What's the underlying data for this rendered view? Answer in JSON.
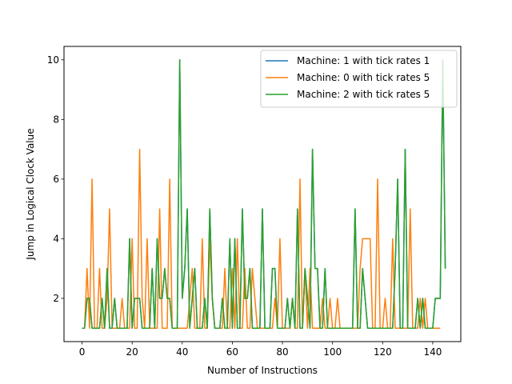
{
  "chart_data": {
    "type": "line",
    "title": "",
    "xlabel": "Number of Instructions",
    "ylabel": "Jump in Logical Clock Value",
    "xlim": [
      -7.2,
      151.2
    ],
    "ylim": [
      0.55,
      10.45
    ],
    "xticks": [
      0,
      20,
      40,
      60,
      80,
      100,
      120,
      140
    ],
    "yticks": [
      2,
      4,
      6,
      8,
      10
    ],
    "grid": false,
    "legend_position": "top-right",
    "series": [
      {
        "name": "Machine: 1 with tick rates 1",
        "color": "#1f77b4",
        "y": [
          1,
          1,
          2,
          2,
          1,
          1,
          1,
          1,
          2,
          1,
          3,
          1,
          1,
          2,
          1,
          1,
          1,
          1,
          1,
          4,
          1,
          2,
          2,
          2,
          1,
          1,
          1,
          1,
          3,
          1,
          4,
          2,
          2,
          3,
          2,
          2,
          1,
          1,
          1,
          10,
          2,
          3,
          5,
          1,
          2,
          3,
          1,
          1,
          1,
          2,
          1,
          5,
          2,
          1,
          1,
          1,
          2,
          1,
          1,
          4,
          1,
          4,
          1,
          1,
          5,
          2,
          2,
          3,
          1,
          1,
          1,
          1,
          5,
          1,
          1,
          1,
          3,
          3,
          1,
          1,
          1,
          1,
          2,
          1,
          2,
          1,
          5,
          1,
          1,
          3,
          2,
          1,
          7,
          3,
          3,
          1,
          1,
          3,
          1,
          1,
          1,
          1,
          1,
          1,
          1,
          1,
          1,
          1,
          1,
          5,
          1,
          1,
          3,
          2,
          1,
          1,
          1,
          1,
          1,
          1,
          1,
          1,
          1,
          1,
          1,
          3,
          6,
          1,
          1,
          7,
          1,
          1,
          1,
          1,
          2,
          1,
          2,
          1,
          1,
          1,
          1,
          2,
          2,
          2,
          10,
          3
        ]
      },
      {
        "name": "Machine: 0 with tick rates 5",
        "color": "#ff7f0e",
        "y": [
          1,
          1,
          3,
          1,
          6,
          1,
          1,
          3,
          1,
          1,
          2,
          5,
          1,
          1,
          1,
          1,
          2,
          1,
          1,
          1,
          4,
          1,
          1,
          7,
          2,
          1,
          4,
          1,
          1,
          1,
          1,
          5,
          1,
          1,
          1,
          6,
          1,
          1,
          1,
          1,
          1,
          1,
          1,
          2,
          3,
          1,
          1,
          1,
          4,
          1,
          1,
          4,
          2,
          1,
          1,
          1,
          1,
          3,
          1,
          1,
          3,
          1,
          4,
          1,
          1,
          3,
          1,
          1,
          3,
          2,
          1,
          1,
          1,
          1,
          1,
          1,
          1,
          2,
          1,
          4,
          1,
          1,
          1,
          1,
          2,
          1,
          1,
          6,
          1,
          3,
          1,
          3,
          1,
          1,
          1,
          1,
          2,
          1,
          1,
          2,
          1,
          1,
          2,
          1,
          1,
          1,
          1,
          1,
          1,
          1,
          1,
          3,
          4,
          4,
          4,
          4,
          1,
          1,
          6,
          1,
          1,
          2,
          1,
          1,
          4,
          1,
          1,
          1,
          1,
          1,
          1,
          5,
          1,
          1,
          1,
          2,
          1,
          2,
          1,
          1,
          1,
          1,
          1,
          1
        ]
      },
      {
        "name": "Machine: 2 with tick rates 5",
        "color": "#2ca02c",
        "y": [
          1,
          1,
          2,
          2,
          1,
          1,
          1,
          1,
          2,
          1,
          3,
          1,
          1,
          2,
          1,
          1,
          1,
          1,
          1,
          4,
          1,
          2,
          2,
          2,
          1,
          1,
          1,
          1,
          3,
          1,
          4,
          2,
          2,
          3,
          2,
          2,
          1,
          1,
          1,
          10,
          2,
          3,
          5,
          1,
          2,
          3,
          1,
          1,
          1,
          2,
          1,
          5,
          2,
          1,
          1,
          1,
          2,
          1,
          1,
          4,
          1,
          4,
          1,
          1,
          5,
          2,
          2,
          3,
          1,
          1,
          1,
          1,
          5,
          1,
          1,
          1,
          3,
          3,
          1,
          1,
          1,
          1,
          2,
          1,
          2,
          1,
          5,
          1,
          1,
          3,
          2,
          1,
          7,
          3,
          3,
          1,
          1,
          3,
          1,
          1,
          1,
          1,
          1,
          1,
          1,
          1,
          1,
          1,
          1,
          5,
          1,
          1,
          3,
          2,
          1,
          1,
          1,
          1,
          1,
          1,
          1,
          1,
          1,
          1,
          1,
          3,
          6,
          1,
          1,
          7,
          1,
          1,
          1,
          1,
          2,
          1,
          2,
          1,
          1,
          1,
          1,
          2,
          2,
          2,
          10,
          3
        ]
      }
    ]
  }
}
